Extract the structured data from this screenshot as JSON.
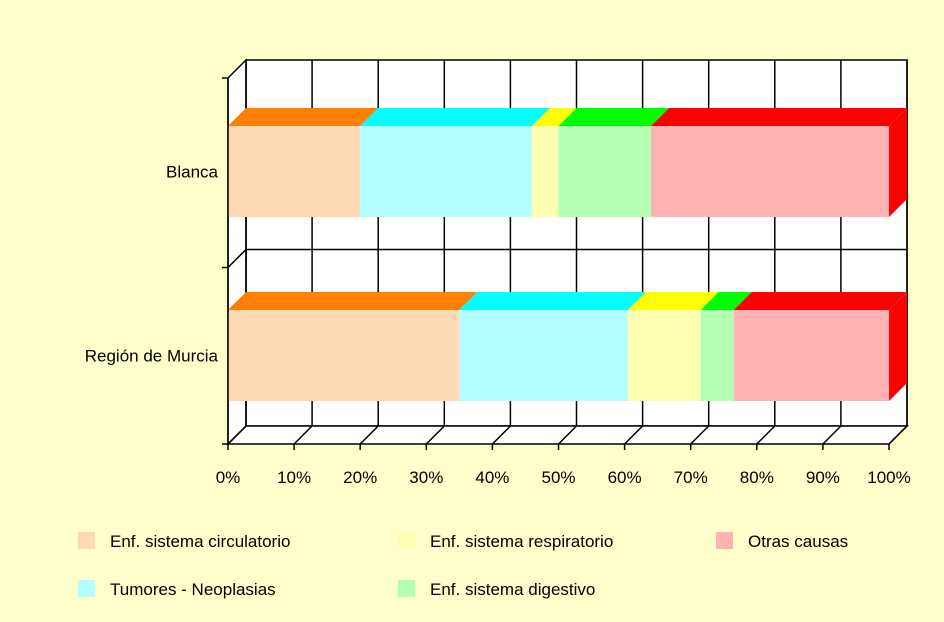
{
  "chart_data": {
    "type": "bar",
    "orientation": "horizontal",
    "stacked": "percent",
    "three_d": true,
    "categories": [
      "Blanca",
      "Región de Murcia"
    ],
    "series": [
      {
        "name": "Enf. sistema circulatorio",
        "values": [
          20,
          35
        ],
        "front_color": "#FFD9B3",
        "top_color": "#FF8000"
      },
      {
        "name": "Tumores - Neoplasias",
        "values": [
          26,
          25.5
        ],
        "front_color": "#B3FFFF",
        "top_color": "#00FFFF"
      },
      {
        "name": "Enf. sistema respiratorio",
        "values": [
          4,
          11
        ],
        "front_color": "#FFFFB3",
        "top_color": "#FFFF00"
      },
      {
        "name": "Enf. sistema digestivo",
        "values": [
          14,
          5
        ],
        "front_color": "#B3FFB3",
        "top_color": "#00FF00"
      },
      {
        "name": "Otras causas",
        "values": [
          36,
          23.5
        ],
        "front_color": "#FFB3B3",
        "top_color": "#FF0000"
      }
    ],
    "x_ticks": [
      "0%",
      "10%",
      "20%",
      "30%",
      "40%",
      "50%",
      "60%",
      "70%",
      "80%",
      "90%",
      "100%"
    ],
    "xlim": [
      0,
      100
    ],
    "grid": true,
    "legend_position": "bottom"
  }
}
